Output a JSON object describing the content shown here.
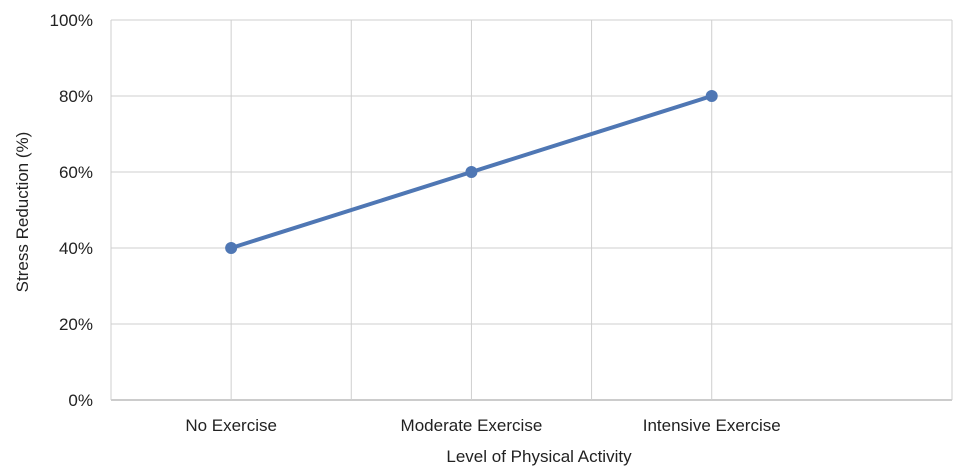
{
  "chart_data": {
    "type": "line",
    "title": "",
    "xlabel": "Level of Physical Activity",
    "ylabel": "Stress Reduction (%)",
    "categories": [
      "No Exercise",
      "Moderate Exercise",
      "Intensive Exercise"
    ],
    "series": [
      {
        "values": [
          40,
          60,
          80
        ],
        "color": "#4F77B4"
      }
    ],
    "y_ticks": [
      0,
      20,
      40,
      60,
      80,
      100
    ],
    "y_tick_labels": [
      "0%",
      "20%",
      "40%",
      "60%",
      "80%",
      "100%"
    ],
    "ylim": [
      0,
      100
    ],
    "grid": true,
    "legend": "none"
  }
}
